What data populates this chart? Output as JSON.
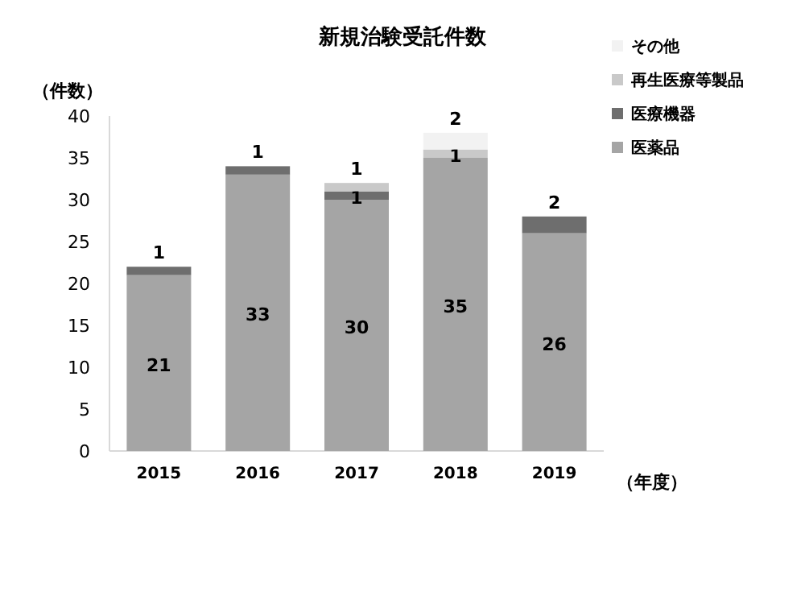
{
  "chart_data": {
    "type": "bar",
    "stacked": true,
    "title": "新規治験受託件数",
    "ylabel": "（件数）",
    "xlabel": "（年度）",
    "categories": [
      "2015",
      "2016",
      "2017",
      "2018",
      "2019"
    ],
    "series": [
      {
        "name": "医薬品",
        "color": "#a5a5a5",
        "values": [
          21,
          33,
          30,
          35,
          26
        ],
        "value_labels": [
          "21",
          "33",
          "30",
          "35",
          "26"
        ]
      },
      {
        "name": "医療機器",
        "color": "#6e6e6e",
        "values": [
          1,
          1,
          1,
          null,
          2
        ],
        "value_labels": [
          "1",
          "1",
          "1",
          null,
          "2"
        ]
      },
      {
        "name": "再生医療等製品",
        "color": "#c9c9c9",
        "values": [
          null,
          null,
          1,
          1,
          null
        ],
        "value_labels": [
          null,
          null,
          "1",
          "1",
          null
        ]
      },
      {
        "name": "その他",
        "color": "#f2f2f2",
        "values": [
          null,
          null,
          null,
          2,
          null
        ],
        "value_labels": [
          null,
          null,
          null,
          "2",
          null
        ]
      }
    ],
    "ylim": [
      0,
      40
    ],
    "yticks": [
      0,
      5,
      10,
      15,
      20,
      25,
      30,
      35,
      40
    ],
    "legend": "top right",
    "grid": false
  }
}
